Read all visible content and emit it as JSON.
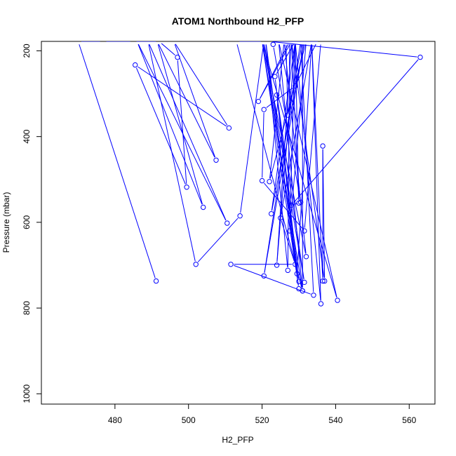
{
  "chart_data": {
    "type": "line",
    "title": "ATOM1 Northbound H2_PFP",
    "xlabel": "H2_PFP",
    "ylabel": "Pressure (mbar)",
    "xlim": [
      460,
      567
    ],
    "ylim": [
      1024,
      178
    ],
    "y_reversed": true,
    "grid": false,
    "series_color": "#0000ff",
    "xticks": [
      480,
      500,
      520,
      540,
      560
    ],
    "yticks": [
      200,
      400,
      600,
      800,
      1000
    ],
    "x": [
      491.2,
      470.0,
      476.8,
      485.0,
      492.0,
      497.0,
      499.5,
      485.5,
      511.0,
      496.0,
      507.5,
      491.5,
      504.0,
      486.0,
      510.5,
      489.0,
      502.0,
      514.0,
      520.5,
      513.0,
      531.0,
      520.0,
      530.0,
      521.0,
      527.0,
      527.5,
      519.0,
      528.0,
      524.0,
      529.0,
      522.5,
      531.5,
      520.5,
      530.5,
      534.0,
      511.5,
      529.0,
      525.0,
      533.5,
      536.0,
      529.0,
      523.5,
      530.0,
      520.5,
      531.5,
      524.0,
      529.5,
      533.5,
      536.5,
      536.5,
      537.0,
      528.0,
      530.0,
      529.0,
      527.5,
      532.0,
      522.0,
      526.0,
      532.0,
      520.0,
      540.5,
      524.5,
      531.0,
      531.0,
      527.0,
      526.5,
      536.0,
      531.5,
      520.0,
      520.5,
      529.0,
      535.0,
      522.0,
      563.0,
      528.0,
      530.5,
      523.0
    ],
    "y": [
      737,
      178,
      178,
      178,
      178,
      215,
      518,
      233,
      380,
      178,
      455,
      178,
      565,
      178,
      602,
      178,
      698,
      585,
      178,
      178,
      760,
      178,
      755,
      178,
      712,
      178,
      318,
      178,
      700,
      178,
      580,
      178,
      725,
      178,
      770,
      698,
      698,
      590,
      178,
      790,
      178,
      260,
      738,
      178,
      740,
      303,
      720,
      178,
      737,
      422,
      737,
      178,
      555,
      178,
      620,
      178,
      505,
      178,
      680,
      178,
      782,
      178,
      760,
      178,
      350,
      178,
      178,
      620,
      503,
      337,
      282,
      178,
      178,
      215,
      560,
      553,
      185
    ]
  }
}
